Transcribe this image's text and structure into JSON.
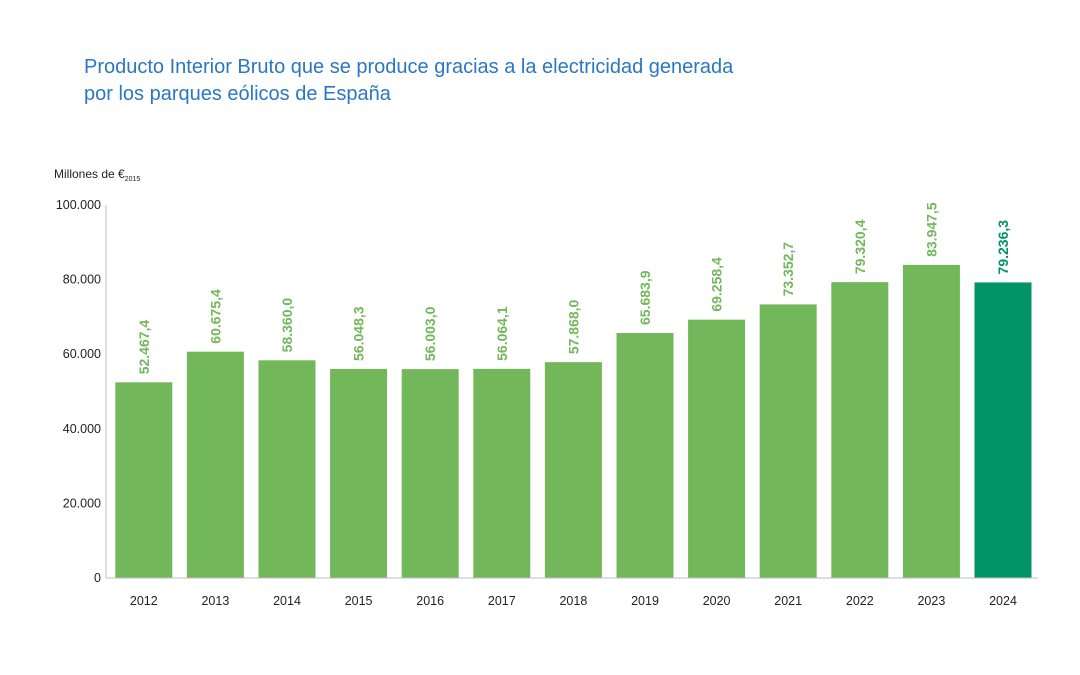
{
  "title": {
    "line1": "Producto Interior Bruto que se produce gracias a la electricidad generada",
    "line2": "por los parques eólicos de España"
  },
  "colors": {
    "title": "#2a77c4",
    "bar": "#72b85a",
    "bar_highlight": "#009466",
    "label": "#72b85a",
    "label_highlight": "#009466"
  },
  "chart_data": {
    "type": "bar",
    "ylabel": "Millones de €",
    "ylabel_subscript": "2015",
    "ylim": [
      0,
      100000
    ],
    "ytick_values": [
      0,
      20000,
      40000,
      60000,
      80000,
      100000
    ],
    "ytick_labels": [
      "0",
      "20.000",
      "40.000",
      "60.000",
      "80.000",
      "100.000"
    ],
    "categories": [
      "2012",
      "2013",
      "2014",
      "2015",
      "2016",
      "2017",
      "2018",
      "2019",
      "2020",
      "2021",
      "2022",
      "2023",
      "2024"
    ],
    "values": [
      52467.4,
      60675.4,
      58360.0,
      56048.3,
      56003.0,
      56064.1,
      57868.0,
      65683.9,
      69258.4,
      73352.7,
      79320.4,
      83947.5,
      79236.3
    ],
    "value_labels": [
      "52.467,4",
      "60.675,4",
      "58.360,0",
      "56.048,3",
      "56.003,0",
      "56.064,1",
      "57.868,0",
      "65.683,9",
      "69.258,4",
      "73.352,7",
      "79.320,4",
      "83.947,5",
      "79.236,3"
    ],
    "highlight_index": 12,
    "grid": false,
    "legend": "none"
  }
}
